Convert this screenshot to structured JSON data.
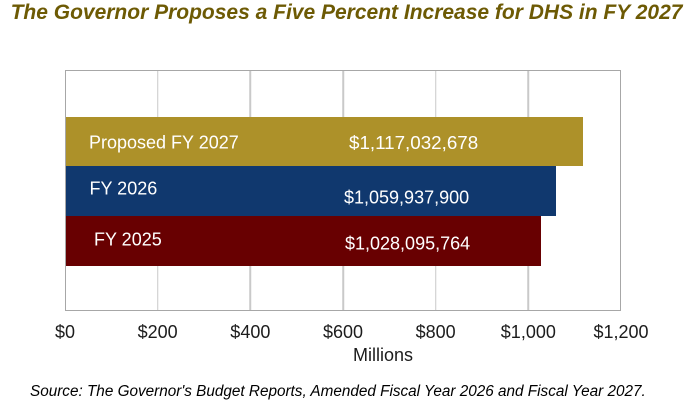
{
  "title": "The Governor Proposes a Five Percent Increase for DHS in FY 2027",
  "source_note": "Source: The Governor's Budget Reports, Amended Fiscal Year 2026 and Fiscal Year 2027.",
  "chart_data": {
    "type": "bar",
    "orientation": "horizontal",
    "title": "The Governor Proposes a Five Percent Increase for DHS in FY 2027",
    "categories": [
      "Proposed FY 2027",
      "FY 2026",
      "FY 2025"
    ],
    "values": [
      1117032678,
      1059937900,
      1028095764
    ],
    "value_labels": [
      "$1,117,032,678",
      "$1,059,937,900",
      "$1,028,095,764"
    ],
    "bar_colors": [
      "#ad9129",
      "#10386e",
      "#680001"
    ],
    "xlabel": "Millions",
    "ylabel": "",
    "x_ticks": [
      "$0",
      "$200",
      "$400",
      "$600",
      "$800",
      "$1,000",
      "$1,200"
    ],
    "xlim": [
      0,
      1200000000
    ],
    "grid": "vertical",
    "legend": "none",
    "label_color": "#ffffff"
  },
  "colors": {
    "title": "#6d5a04",
    "plot_border": "#a7a7a7",
    "gridline": "#c9c9c9",
    "axis_text": "#1c1c1c",
    "background": "#ffffff"
  }
}
